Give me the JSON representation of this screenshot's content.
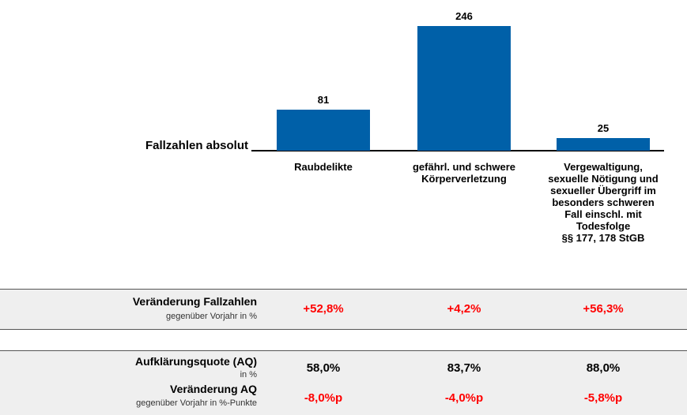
{
  "chart_data": {
    "type": "bar",
    "axis_label": "Fallzahlen absolut",
    "categories": [
      "Raubdelikte",
      "gefährl. und schwere\nKörperverletzung",
      "Vergewaltigung,\nsexuelle Nötigung und\nsexueller Übergriff im\nbesonders schweren\nFall einschl. mit\nTodesfolge\n§§ 177, 178 StGB"
    ],
    "values": [
      81,
      246,
      25
    ],
    "color": "#0060a8"
  },
  "table": {
    "sections": [
      {
        "rows": [
          {
            "label": "Veränderung Fallzahlen",
            "sublabel": "gegenüber Vorjahr in %",
            "values": [
              "+52,8%",
              "+4,2%",
              "+56,3%"
            ],
            "color": "#ff0000"
          }
        ]
      },
      {
        "rows": [
          {
            "label": "Aufklärungsquote (AQ)",
            "sublabel": "in %",
            "values": [
              "58,0%",
              "83,7%",
              "88,0%"
            ],
            "color": "#000000"
          },
          {
            "label": "Veränderung AQ",
            "sublabel": "gegenüber Vorjahr in %-Punkte",
            "values": [
              "-8,0%p",
              "-4,0%p",
              "-5,8%p"
            ],
            "color": "#ff0000"
          }
        ]
      }
    ]
  }
}
